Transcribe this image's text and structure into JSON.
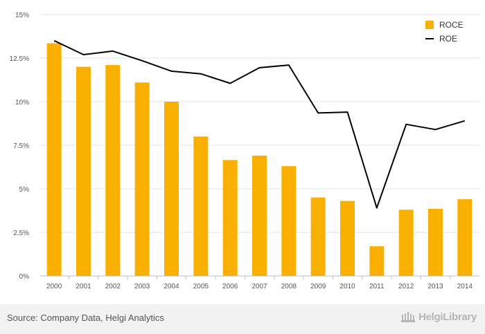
{
  "chart_data": {
    "type": "bar",
    "categories": [
      "2000",
      "2001",
      "2002",
      "2003",
      "2004",
      "2005",
      "2006",
      "2007",
      "2008",
      "2009",
      "2010",
      "2011",
      "2012",
      "2013",
      "2014"
    ],
    "series": [
      {
        "name": "ROCE",
        "kind": "bar",
        "color": "#f9b000",
        "values": [
          13.35,
          12.0,
          12.1,
          11.1,
          10.0,
          8.0,
          6.65,
          6.9,
          6.3,
          4.5,
          4.3,
          1.7,
          3.8,
          3.85,
          4.4
        ]
      },
      {
        "name": "ROE",
        "kind": "line",
        "color": "#000000",
        "values": [
          13.5,
          12.7,
          12.9,
          12.35,
          11.75,
          11.6,
          11.05,
          11.95,
          12.1,
          9.35,
          9.4,
          3.9,
          8.7,
          8.4,
          8.9
        ]
      }
    ],
    "yticks": [
      "0%",
      "2.5%",
      "5%",
      "7.5%",
      "10%",
      "12.5%",
      "15%"
    ],
    "ylim": [
      0,
      15
    ],
    "grid": true,
    "legend": "top-right"
  },
  "footer": {
    "source": "Source: Company Data, Helgi Analytics",
    "brand": "HelgiLibrary"
  }
}
